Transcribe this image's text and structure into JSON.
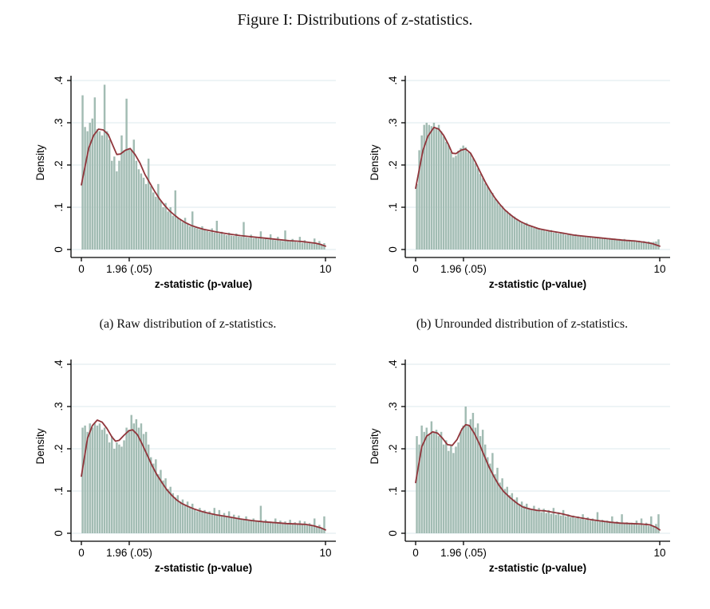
{
  "figure_title": "Figure I: Distributions of z-statistics.",
  "captions": {
    "a": "(a) Raw distribution of z-statistics.",
    "b": "(b) Unrounded distribution of z-statistics."
  },
  "style": {
    "bar_color": "#a2bcb3",
    "line_color": "#90353b",
    "grid_color": "#e4eef0",
    "axis_color": "#000000",
    "background": "#ffffff"
  },
  "chart_data": [
    {
      "type": "bar",
      "panel": "a",
      "caption": "(a) Raw distribution of z-statistics.",
      "xlabel": "z-statistic (p-value)",
      "ylabel": "Density",
      "xlim": [
        0,
        10
      ],
      "ylim": [
        0,
        0.4
      ],
      "grid": true,
      "xticks": [
        {
          "v": 0,
          "label": "0"
        },
        {
          "v": 1.96,
          "label": "1.96 (.05)"
        },
        {
          "v": 10,
          "label": "10"
        }
      ],
      "yticks": [
        {
          "v": 0,
          "label": "0"
        },
        {
          "v": 0.1,
          "label": ".1"
        },
        {
          "v": 0.2,
          "label": ".2"
        },
        {
          "v": 0.3,
          "label": ".3"
        },
        {
          "v": 0.4,
          "label": ".4"
        }
      ],
      "bin_start": 0,
      "bin_width": 0.1,
      "bar_heights": [
        0.365,
        0.29,
        0.28,
        0.3,
        0.31,
        0.36,
        0.285,
        0.28,
        0.27,
        0.39,
        0.28,
        0.26,
        0.21,
        0.22,
        0.185,
        0.21,
        0.27,
        0.235,
        0.357,
        0.24,
        0.235,
        0.26,
        0.21,
        0.19,
        0.18,
        0.17,
        0.155,
        0.215,
        0.15,
        0.135,
        0.125,
        0.155,
        0.115,
        0.1,
        0.11,
        0.09,
        0.1,
        0.08,
        0.14,
        0.075,
        0.07,
        0.065,
        0.075,
        0.06,
        0.055,
        0.09,
        0.052,
        0.05,
        0.048,
        0.055,
        0.046,
        0.044,
        0.042,
        0.05,
        0.04,
        0.068,
        0.038,
        0.042,
        0.036,
        0.034,
        0.04,
        0.033,
        0.032,
        0.038,
        0.031,
        0.03,
        0.065,
        0.029,
        0.028,
        0.035,
        0.027,
        0.03,
        0.026,
        0.043,
        0.025,
        0.028,
        0.024,
        0.036,
        0.023,
        0.022,
        0.03,
        0.021,
        0.02,
        0.045,
        0.02,
        0.019,
        0.025,
        0.018,
        0.017,
        0.03,
        0.016,
        0.022,
        0.015,
        0.018,
        0.014,
        0.026,
        0.013,
        0.02,
        0.012,
        0.015
      ],
      "density_line": {
        "x": [
          0,
          0.3,
          0.5,
          0.7,
          0.9,
          1.1,
          1.3,
          1.45,
          1.6,
          1.8,
          2.0,
          2.2,
          2.4,
          2.6,
          2.8,
          3.0,
          3.2,
          3.4,
          3.6,
          3.8,
          4.0,
          4.25,
          4.5,
          4.75,
          5.0,
          5.5,
          6.0,
          6.5,
          7.0,
          7.5,
          8.0,
          8.5,
          9.0,
          9.3,
          9.6,
          9.8,
          10
        ],
        "y": [
          0.153,
          0.24,
          0.27,
          0.285,
          0.283,
          0.272,
          0.245,
          0.225,
          0.226,
          0.235,
          0.239,
          0.225,
          0.205,
          0.178,
          0.158,
          0.138,
          0.12,
          0.105,
          0.092,
          0.082,
          0.073,
          0.064,
          0.057,
          0.052,
          0.048,
          0.042,
          0.037,
          0.033,
          0.03,
          0.027,
          0.024,
          0.021,
          0.019,
          0.017,
          0.015,
          0.012,
          0.008
        ]
      }
    },
    {
      "type": "bar",
      "panel": "b",
      "caption": "(b) Unrounded distribution of z-statistics.",
      "xlabel": "z-statistic (p-value)",
      "ylabel": "Density",
      "xlim": [
        0,
        10
      ],
      "ylim": [
        0,
        0.4
      ],
      "grid": true,
      "xticks": [
        {
          "v": 0,
          "label": "0"
        },
        {
          "v": 1.96,
          "label": "1.96 (.05)"
        },
        {
          "v": 10,
          "label": "10"
        }
      ],
      "yticks": [
        {
          "v": 0,
          "label": "0"
        },
        {
          "v": 0.1,
          "label": ".1"
        },
        {
          "v": 0.2,
          "label": ".2"
        },
        {
          "v": 0.3,
          "label": ".3"
        },
        {
          "v": 0.4,
          "label": ".4"
        }
      ],
      "bin_start": 0,
      "bin_width": 0.1,
      "bar_heights": [
        0.155,
        0.235,
        0.27,
        0.295,
        0.3,
        0.295,
        0.292,
        0.3,
        0.288,
        0.295,
        0.28,
        0.268,
        0.255,
        0.247,
        0.232,
        0.218,
        0.222,
        0.234,
        0.24,
        0.246,
        0.242,
        0.23,
        0.228,
        0.216,
        0.204,
        0.192,
        0.179,
        0.169,
        0.157,
        0.149,
        0.141,
        0.134,
        0.12,
        0.115,
        0.105,
        0.103,
        0.094,
        0.091,
        0.086,
        0.08,
        0.078,
        0.071,
        0.068,
        0.065,
        0.06,
        0.063,
        0.056,
        0.055,
        0.051,
        0.05,
        0.051,
        0.046,
        0.047,
        0.043,
        0.045,
        0.046,
        0.04,
        0.041,
        0.038,
        0.039,
        0.04,
        0.035,
        0.036,
        0.035,
        0.033,
        0.036,
        0.032,
        0.033,
        0.03,
        0.032,
        0.029,
        0.031,
        0.028,
        0.03,
        0.027,
        0.029,
        0.026,
        0.028,
        0.026,
        0.027,
        0.025,
        0.026,
        0.024,
        0.025,
        0.023,
        0.025,
        0.022,
        0.023,
        0.021,
        0.022,
        0.02,
        0.021,
        0.019,
        0.02,
        0.018,
        0.019,
        0.017,
        0.018,
        0.019,
        0.024
      ],
      "density_line": {
        "x": [
          0,
          0.3,
          0.5,
          0.75,
          0.95,
          1.15,
          1.35,
          1.5,
          1.65,
          1.85,
          2.05,
          2.25,
          2.45,
          2.65,
          2.85,
          3.05,
          3.25,
          3.45,
          3.65,
          3.85,
          4.05,
          4.3,
          4.55,
          4.8,
          5.05,
          5.5,
          6.0,
          6.5,
          7.0,
          7.5,
          8.0,
          8.5,
          9.0,
          9.4,
          9.7,
          10
        ],
        "y": [
          0.145,
          0.235,
          0.268,
          0.289,
          0.285,
          0.27,
          0.248,
          0.228,
          0.227,
          0.235,
          0.238,
          0.228,
          0.207,
          0.183,
          0.16,
          0.14,
          0.122,
          0.107,
          0.094,
          0.084,
          0.075,
          0.066,
          0.059,
          0.054,
          0.049,
          0.044,
          0.039,
          0.034,
          0.031,
          0.028,
          0.025,
          0.022,
          0.02,
          0.017,
          0.014,
          0.008
        ]
      }
    },
    {
      "type": "bar",
      "panel": "c",
      "caption": "",
      "xlabel": "z-statistic (p-value)",
      "ylabel": "Density",
      "xlim": [
        0,
        10
      ],
      "ylim": [
        0,
        0.4
      ],
      "grid": true,
      "xticks": [
        {
          "v": 0,
          "label": "0"
        },
        {
          "v": 1.96,
          "label": "1.96 (.05)"
        },
        {
          "v": 10,
          "label": "10"
        }
      ],
      "yticks": [
        {
          "v": 0,
          "label": "0"
        },
        {
          "v": 0.1,
          "label": ".1"
        },
        {
          "v": 0.2,
          "label": ".2"
        },
        {
          "v": 0.3,
          "label": ".3"
        },
        {
          "v": 0.4,
          "label": ".4"
        }
      ],
      "bin_start": 0,
      "bin_width": 0.1,
      "bar_heights": [
        0.25,
        0.255,
        0.24,
        0.26,
        0.25,
        0.26,
        0.255,
        0.26,
        0.245,
        0.25,
        0.235,
        0.215,
        0.23,
        0.2,
        0.215,
        0.21,
        0.205,
        0.22,
        0.25,
        0.245,
        0.28,
        0.26,
        0.27,
        0.25,
        0.26,
        0.235,
        0.24,
        0.21,
        0.18,
        0.165,
        0.175,
        0.14,
        0.15,
        0.125,
        0.13,
        0.105,
        0.11,
        0.095,
        0.085,
        0.09,
        0.075,
        0.08,
        0.068,
        0.075,
        0.063,
        0.07,
        0.058,
        0.052,
        0.06,
        0.05,
        0.055,
        0.047,
        0.052,
        0.045,
        0.06,
        0.042,
        0.055,
        0.04,
        0.048,
        0.038,
        0.052,
        0.036,
        0.044,
        0.034,
        0.042,
        0.033,
        0.032,
        0.04,
        0.031,
        0.03,
        0.035,
        0.029,
        0.028,
        0.065,
        0.027,
        0.032,
        0.026,
        0.028,
        0.025,
        0.035,
        0.024,
        0.03,
        0.023,
        0.028,
        0.022,
        0.032,
        0.022,
        0.026,
        0.021,
        0.03,
        0.02,
        0.028,
        0.019,
        0.024,
        0.018,
        0.035,
        0.016,
        0.02,
        0.012,
        0.04
      ],
      "density_line": {
        "x": [
          0,
          0.25,
          0.45,
          0.65,
          0.85,
          1.05,
          1.25,
          1.4,
          1.55,
          1.75,
          1.95,
          2.1,
          2.3,
          2.5,
          2.7,
          2.9,
          3.1,
          3.3,
          3.5,
          3.7,
          3.9,
          4.1,
          4.35,
          4.6,
          4.85,
          5.1,
          5.5,
          6.0,
          6.5,
          7.0,
          7.5,
          8.0,
          8.4,
          8.8,
          9.2,
          9.5,
          9.8,
          10
        ],
        "y": [
          0.135,
          0.225,
          0.255,
          0.268,
          0.263,
          0.248,
          0.228,
          0.218,
          0.22,
          0.232,
          0.243,
          0.245,
          0.233,
          0.21,
          0.185,
          0.16,
          0.138,
          0.12,
          0.103,
          0.09,
          0.079,
          0.071,
          0.064,
          0.058,
          0.053,
          0.049,
          0.044,
          0.039,
          0.034,
          0.03,
          0.027,
          0.025,
          0.023,
          0.022,
          0.021,
          0.018,
          0.013,
          0.008
        ]
      }
    },
    {
      "type": "bar",
      "panel": "d",
      "caption": "",
      "xlabel": "z-statistic (p-value)",
      "ylabel": "Density",
      "xlim": [
        0,
        10
      ],
      "ylim": [
        0,
        0.4
      ],
      "grid": true,
      "xticks": [
        {
          "v": 0,
          "label": "0"
        },
        {
          "v": 1.96,
          "label": "1.96 (.05)"
        },
        {
          "v": 10,
          "label": "10"
        }
      ],
      "yticks": [
        {
          "v": 0,
          "label": "0"
        },
        {
          "v": 0.1,
          "label": ".1"
        },
        {
          "v": 0.2,
          "label": ".2"
        },
        {
          "v": 0.3,
          "label": ".3"
        },
        {
          "v": 0.4,
          "label": ".4"
        }
      ],
      "bin_start": 0,
      "bin_width": 0.1,
      "bar_heights": [
        0.23,
        0.21,
        0.255,
        0.24,
        0.25,
        0.235,
        0.265,
        0.24,
        0.245,
        0.23,
        0.24,
        0.21,
        0.22,
        0.195,
        0.21,
        0.19,
        0.205,
        0.215,
        0.24,
        0.255,
        0.3,
        0.255,
        0.27,
        0.285,
        0.25,
        0.26,
        0.23,
        0.245,
        0.21,
        0.18,
        0.165,
        0.19,
        0.14,
        0.155,
        0.12,
        0.13,
        0.105,
        0.11,
        0.09,
        0.095,
        0.08,
        0.085,
        0.07,
        0.075,
        0.065,
        0.07,
        0.06,
        0.055,
        0.065,
        0.055,
        0.06,
        0.05,
        0.058,
        0.048,
        0.055,
        0.046,
        0.06,
        0.044,
        0.05,
        0.042,
        0.055,
        0.04,
        0.045,
        0.038,
        0.042,
        0.036,
        0.04,
        0.034,
        0.045,
        0.032,
        0.038,
        0.03,
        0.035,
        0.029,
        0.05,
        0.028,
        0.032,
        0.027,
        0.03,
        0.026,
        0.04,
        0.025,
        0.028,
        0.024,
        0.045,
        0.023,
        0.026,
        0.022,
        0.025,
        0.021,
        0.03,
        0.02,
        0.035,
        0.019,
        0.025,
        0.018,
        0.04,
        0.017,
        0.022,
        0.045
      ],
      "density_line": {
        "x": [
          0,
          0.25,
          0.45,
          0.7,
          0.9,
          1.1,
          1.3,
          1.5,
          1.7,
          1.9,
          2.05,
          2.2,
          2.4,
          2.6,
          2.8,
          3.0,
          3.2,
          3.4,
          3.6,
          3.8,
          4.0,
          4.2,
          4.4,
          4.7,
          5.0,
          5.3,
          5.6,
          6.0,
          6.4,
          6.8,
          7.2,
          7.6,
          8.0,
          8.4,
          8.8,
          9.2,
          9.6,
          9.85,
          10
        ],
        "y": [
          0.12,
          0.205,
          0.23,
          0.24,
          0.237,
          0.225,
          0.21,
          0.208,
          0.222,
          0.247,
          0.257,
          0.255,
          0.237,
          0.213,
          0.185,
          0.158,
          0.135,
          0.115,
          0.099,
          0.088,
          0.078,
          0.069,
          0.062,
          0.057,
          0.054,
          0.053,
          0.05,
          0.046,
          0.04,
          0.036,
          0.032,
          0.029,
          0.026,
          0.024,
          0.023,
          0.022,
          0.02,
          0.014,
          0.008
        ]
      }
    }
  ]
}
